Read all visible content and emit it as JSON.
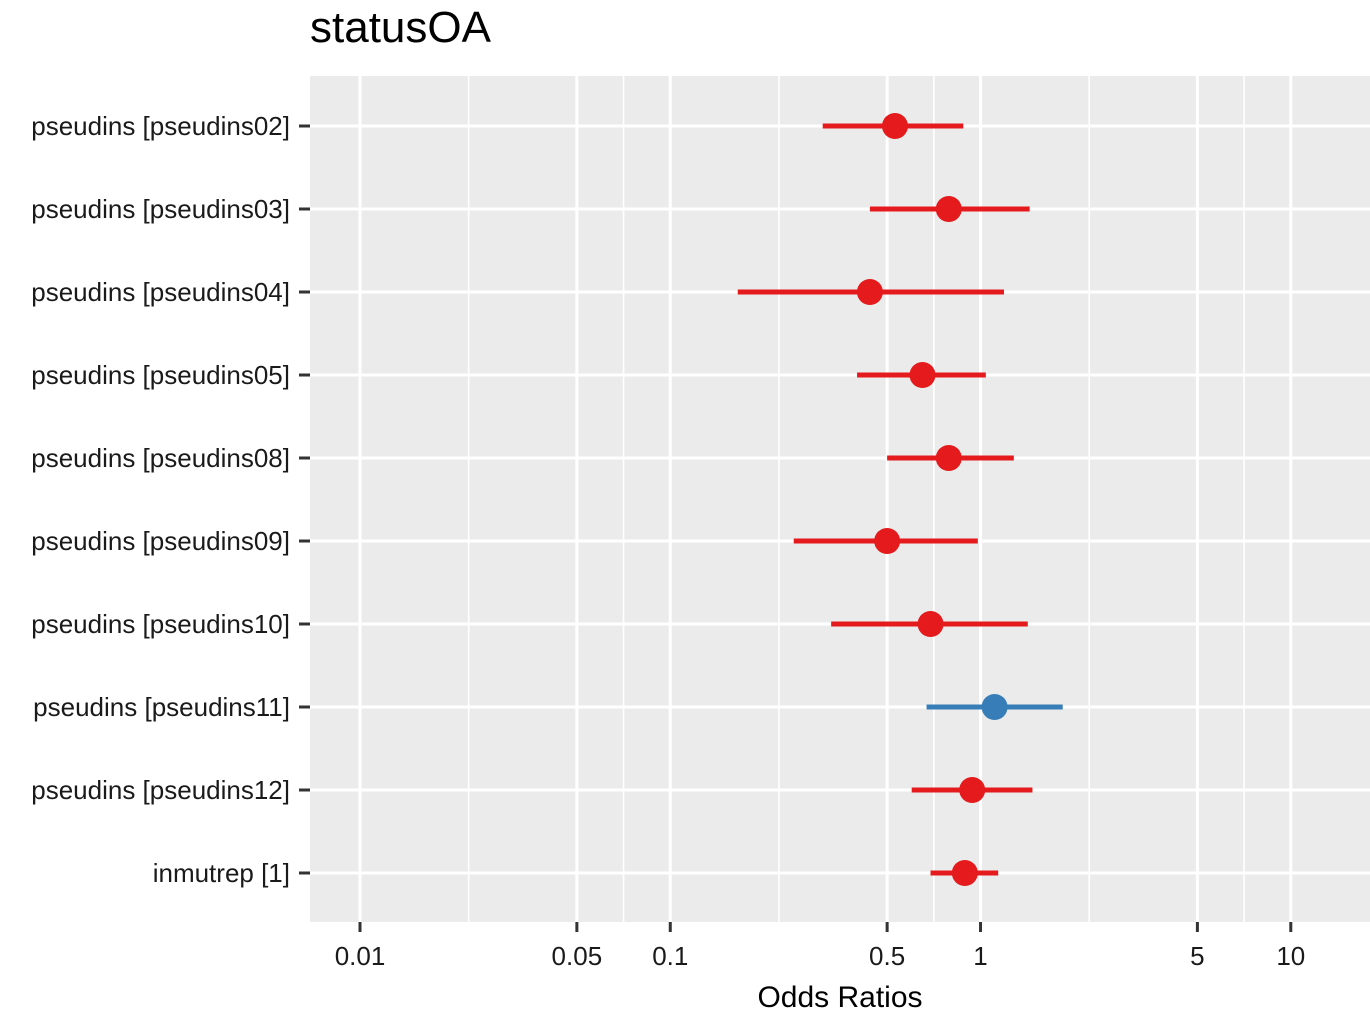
{
  "chart_data": {
    "type": "forest",
    "title": "statusOA",
    "xlabel": "Odds Ratios",
    "ylabel": "",
    "xscale": "log10",
    "xlim": [
      0.0069,
      18
    ],
    "grid": true,
    "x_ticks": [
      {
        "value": 0.01,
        "label": "0.01"
      },
      {
        "value": 0.05,
        "label": "0.05"
      },
      {
        "value": 0.1,
        "label": "0.1"
      },
      {
        "value": 0.5,
        "label": "0.5"
      },
      {
        "value": 1,
        "label": "1"
      },
      {
        "value": 5,
        "label": "5"
      },
      {
        "value": 10,
        "label": "10"
      }
    ],
    "minor_grid": [
      0.0224,
      0.224,
      2.24
    ],
    "colors": {
      "negative": "#E41A1C",
      "positive": "#377EB8",
      "panel": "#EBEBEB",
      "grid": "#FFFFFF",
      "tick": "#333333"
    },
    "terms": [
      {
        "label": "pseudins [pseudins02]",
        "estimate": 0.53,
        "conf_low": 0.31,
        "conf_high": 0.88,
        "direction": "negative"
      },
      {
        "label": "pseudins [pseudins03]",
        "estimate": 0.79,
        "conf_low": 0.44,
        "conf_high": 1.44,
        "direction": "negative"
      },
      {
        "label": "pseudins [pseudins04]",
        "estimate": 0.44,
        "conf_low": 0.165,
        "conf_high": 1.19,
        "direction": "negative"
      },
      {
        "label": "pseudins [pseudins05]",
        "estimate": 0.65,
        "conf_low": 0.4,
        "conf_high": 1.04,
        "direction": "negative"
      },
      {
        "label": "pseudins [pseudins08]",
        "estimate": 0.79,
        "conf_low": 0.5,
        "conf_high": 1.28,
        "direction": "negative"
      },
      {
        "label": "pseudins [pseudins09]",
        "estimate": 0.5,
        "conf_low": 0.25,
        "conf_high": 0.98,
        "direction": "negative"
      },
      {
        "label": "pseudins [pseudins10]",
        "estimate": 0.69,
        "conf_low": 0.33,
        "conf_high": 1.42,
        "direction": "negative"
      },
      {
        "label": "pseudins [pseudins11]",
        "estimate": 1.11,
        "conf_low": 0.67,
        "conf_high": 1.84,
        "direction": "positive"
      },
      {
        "label": "pseudins [pseudins12]",
        "estimate": 0.94,
        "conf_low": 0.6,
        "conf_high": 1.47,
        "direction": "negative"
      },
      {
        "label": "inmutrep [1]",
        "estimate": 0.89,
        "conf_low": 0.69,
        "conf_high": 1.14,
        "direction": "negative"
      }
    ]
  }
}
